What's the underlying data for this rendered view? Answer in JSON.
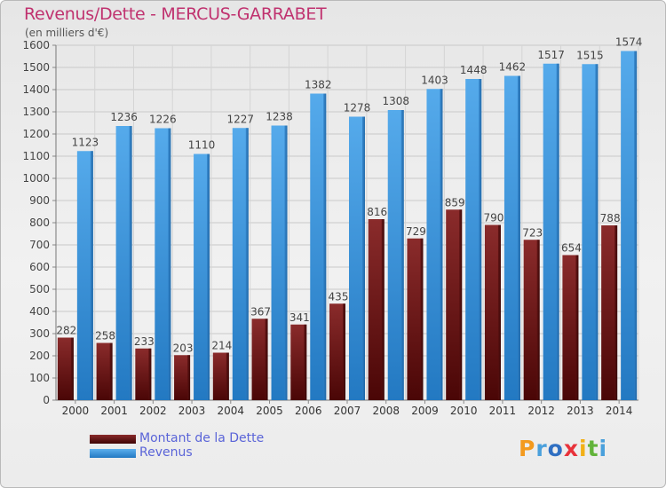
{
  "title": "Revenus/Dette - MERCUS-GARRABET",
  "subtitle": "(en milliers d'€)",
  "logo": {
    "text": "Proxiti",
    "letters": [
      {
        "ch": "P",
        "color": "#f39a1e"
      },
      {
        "ch": "r",
        "color": "#4aa0dc"
      },
      {
        "ch": "o",
        "color": "#2f6fc2"
      },
      {
        "ch": "x",
        "color": "#e8323a"
      },
      {
        "ch": "i",
        "color": "#f2b018"
      },
      {
        "ch": "t",
        "color": "#62b33a"
      },
      {
        "ch": "i",
        "color": "#4aa0dc"
      }
    ]
  },
  "chart_data": {
    "type": "bar",
    "title": "Revenus/Dette - MERCUS-GARRABET",
    "ylabel": "(en milliers d'€)",
    "categories": [
      "2000",
      "2001",
      "2002",
      "2003",
      "2004",
      "2005",
      "2006",
      "2007",
      "2008",
      "2009",
      "2010",
      "2011",
      "2012",
      "2013",
      "2014"
    ],
    "ylim": [
      0,
      1600
    ],
    "yticks": [
      0,
      100,
      200,
      300,
      400,
      500,
      600,
      700,
      800,
      900,
      1000,
      1100,
      1200,
      1300,
      1400,
      1500,
      1600
    ],
    "grid": true,
    "legend_position": "bottom-left",
    "series": [
      {
        "name": "Montant de la Dette",
        "color": "#7a1e1e",
        "values": [
          282,
          258,
          233,
          203,
          214,
          367,
          341,
          435,
          816,
          729,
          859,
          790,
          723,
          654,
          788
        ]
      },
      {
        "name": "Revenus",
        "color": "#3d96dc",
        "values": [
          1123,
          1236,
          1226,
          1110,
          1227,
          1238,
          1382,
          1278,
          1308,
          1403,
          1448,
          1462,
          1517,
          1515,
          1574
        ]
      }
    ]
  }
}
